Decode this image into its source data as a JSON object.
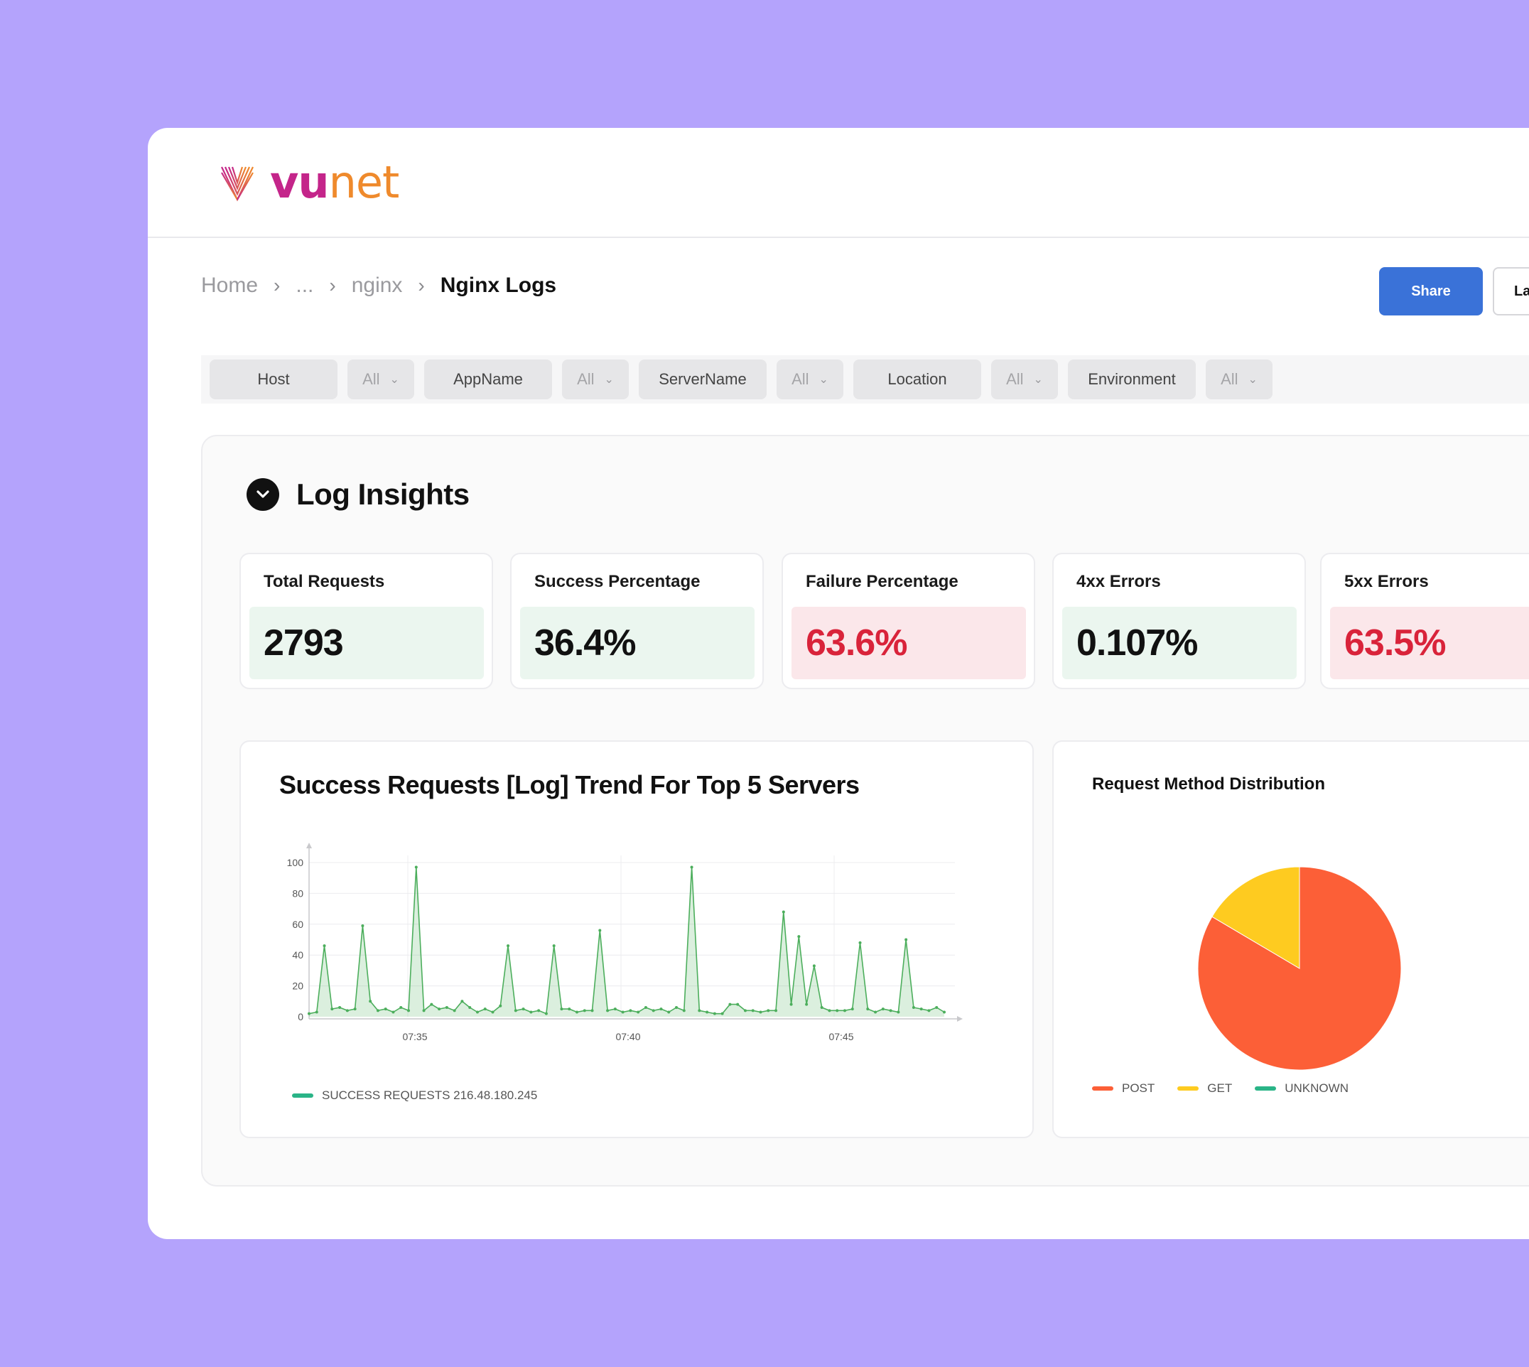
{
  "brand": {
    "name_part1": "vu",
    "name_part2": "net"
  },
  "breadcrumb": {
    "items": [
      "Home",
      "...",
      "nginx"
    ],
    "current": "Nginx Logs",
    "separator": ">"
  },
  "actions": {
    "share_label": "Share",
    "second_label": "La"
  },
  "filters": [
    {
      "label": "Host",
      "value": "All"
    },
    {
      "label": "AppName",
      "value": "All"
    },
    {
      "label": "ServerName",
      "value": "All"
    },
    {
      "label": "Location",
      "value": "All"
    },
    {
      "label": "Environment",
      "value": "All"
    }
  ],
  "panel": {
    "title": "Log Insights"
  },
  "kpis": [
    {
      "label": "Total Requests",
      "value": "2793",
      "status": "good"
    },
    {
      "label": "Success Percentage",
      "value": "36.4%",
      "status": "good"
    },
    {
      "label": "Failure Percentage",
      "value": "63.6%",
      "status": "bad"
    },
    {
      "label": "4xx Errors",
      "value": "0.107%",
      "status": "good"
    },
    {
      "label": "5xx Errors",
      "value": "63.5%",
      "status": "bad"
    }
  ],
  "colors": {
    "accent": "#3a72d8",
    "good_bg": "#ebf6ef",
    "bad_bg": "#fbe7ea",
    "bad_text": "#d9233a",
    "background": "#b4a3fc"
  },
  "chart_data": [
    {
      "type": "area",
      "title": "Success Requests [Log] Trend For Top 5 Servers",
      "xlabel": "",
      "ylabel": "",
      "ylim": [
        0,
        100
      ],
      "yticks": [
        0,
        20,
        40,
        60,
        80,
        100
      ],
      "xtick_labels": [
        "07:35",
        "07:40",
        "07:45"
      ],
      "grid": true,
      "legend_position": "bottom-left",
      "series": [
        {
          "name": "SUCCESS REQUESTS 216.48.180.245",
          "color": "#4cae5c",
          "values": [
            2,
            3,
            46,
            5,
            6,
            4,
            5,
            59,
            10,
            4,
            5,
            3,
            6,
            4,
            97,
            4,
            8,
            5,
            6,
            4,
            10,
            6,
            3,
            5,
            3,
            7,
            46,
            4,
            5,
            3,
            4,
            2,
            46,
            5,
            5,
            3,
            4,
            4,
            56,
            4,
            5,
            3,
            4,
            3,
            6,
            4,
            5,
            3,
            6,
            4,
            97,
            4,
            3,
            2,
            2,
            8,
            8,
            4,
            4,
            3,
            4,
            4,
            68,
            8,
            52,
            8,
            33,
            6,
            4,
            4,
            4,
            5,
            48,
            5,
            3,
            5,
            4,
            3,
            50,
            6,
            5,
            4,
            6,
            3
          ]
        }
      ]
    },
    {
      "type": "pie",
      "title": "Request Method Distribution",
      "legend_position": "bottom",
      "series": [
        {
          "name": "POST",
          "value": 83.5,
          "color": "#fc5f37"
        },
        {
          "name": "GET",
          "value": 16.5,
          "color": "#fecb20"
        },
        {
          "name": "UNKNOWN",
          "value": 0,
          "color": "#2ab487"
        }
      ]
    }
  ]
}
